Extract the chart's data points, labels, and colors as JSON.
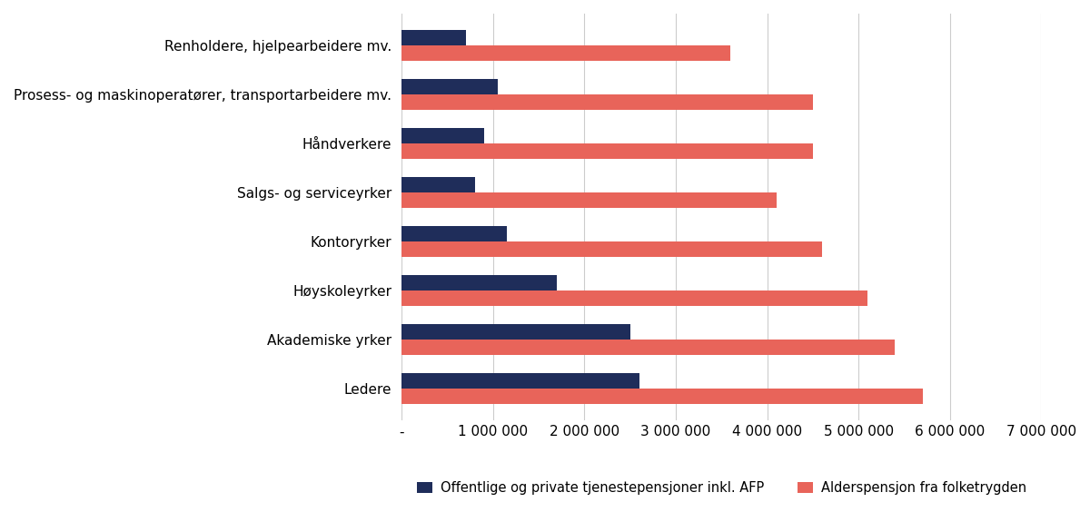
{
  "categories": [
    "Ledere",
    "Akademiske yrker",
    "Høyskoleyrker",
    "Kontoryrker",
    "Salgs- og serviceyrker",
    "Håndverkere",
    "Prosess- og maskinoperatører, transportarbeidere mv.",
    "Renholdere, hjelpearbeidere mv."
  ],
  "dark_values": [
    2600000,
    2500000,
    1700000,
    1150000,
    800000,
    900000,
    1050000,
    700000
  ],
  "light_values": [
    5700000,
    5400000,
    5100000,
    4600000,
    4100000,
    4500000,
    4500000,
    3600000
  ],
  "dark_color": "#1f2d5a",
  "light_color": "#e8645a",
  "dark_label": "Offentlige og private tjenestepensjoner inkl. AFP",
  "light_label": "Alderspensjon fra folketrygden",
  "xlim": [
    0,
    7000000
  ],
  "xtick_values": [
    0,
    1000000,
    2000000,
    3000000,
    4000000,
    5000000,
    6000000,
    7000000
  ],
  "xtick_labels": [
    "-",
    "1 000 000",
    "2 000 000",
    "3 000 000",
    "4 000 000",
    "5 000 000",
    "6 000 000",
    "7 000 000"
  ],
  "background_color": "#ffffff",
  "bar_height": 0.32,
  "fontsize": 11,
  "legend_fontsize": 10.5,
  "grid_color": "#cccccc"
}
